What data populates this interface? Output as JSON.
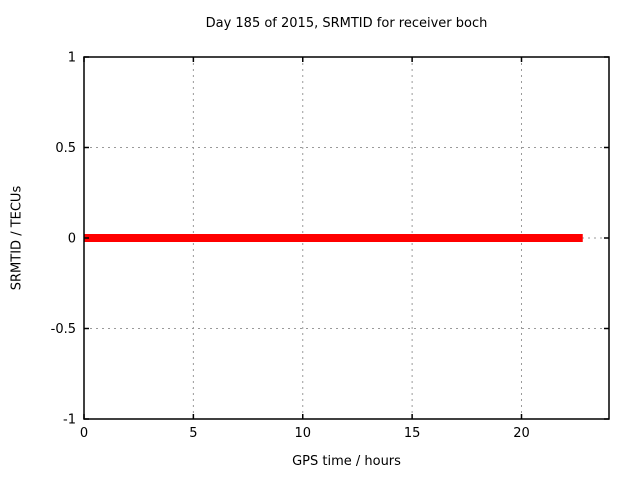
{
  "chart_data": {
    "type": "line",
    "title": "Day 185 of 2015, SRMTID for receiver boch",
    "xlabel": "GPS time / hours",
    "ylabel": "SRMTID / TECUs",
    "xlim": [
      0,
      24
    ],
    "ylim": [
      -1,
      1
    ],
    "xticks": {
      "values": [
        0,
        5,
        10,
        15,
        20
      ],
      "labels": [
        "0",
        "5",
        "10",
        "15",
        "20"
      ]
    },
    "yticks": {
      "values": [
        -1,
        -0.5,
        0,
        0.5,
        1
      ],
      "labels": [
        "-1",
        "-0.5",
        "0",
        "0.5",
        "1"
      ]
    },
    "grid": true,
    "grid_style": "dotted",
    "legend": "none",
    "series": [
      {
        "name": "SRMTID",
        "color": "#ff0000",
        "line_width": 8,
        "x": [
          0,
          22.8
        ],
        "y": [
          0,
          0
        ]
      }
    ]
  },
  "colors": {
    "background": "#ffffff",
    "border": "#000000",
    "grid": "#9a9a9a",
    "text": "#000000"
  }
}
